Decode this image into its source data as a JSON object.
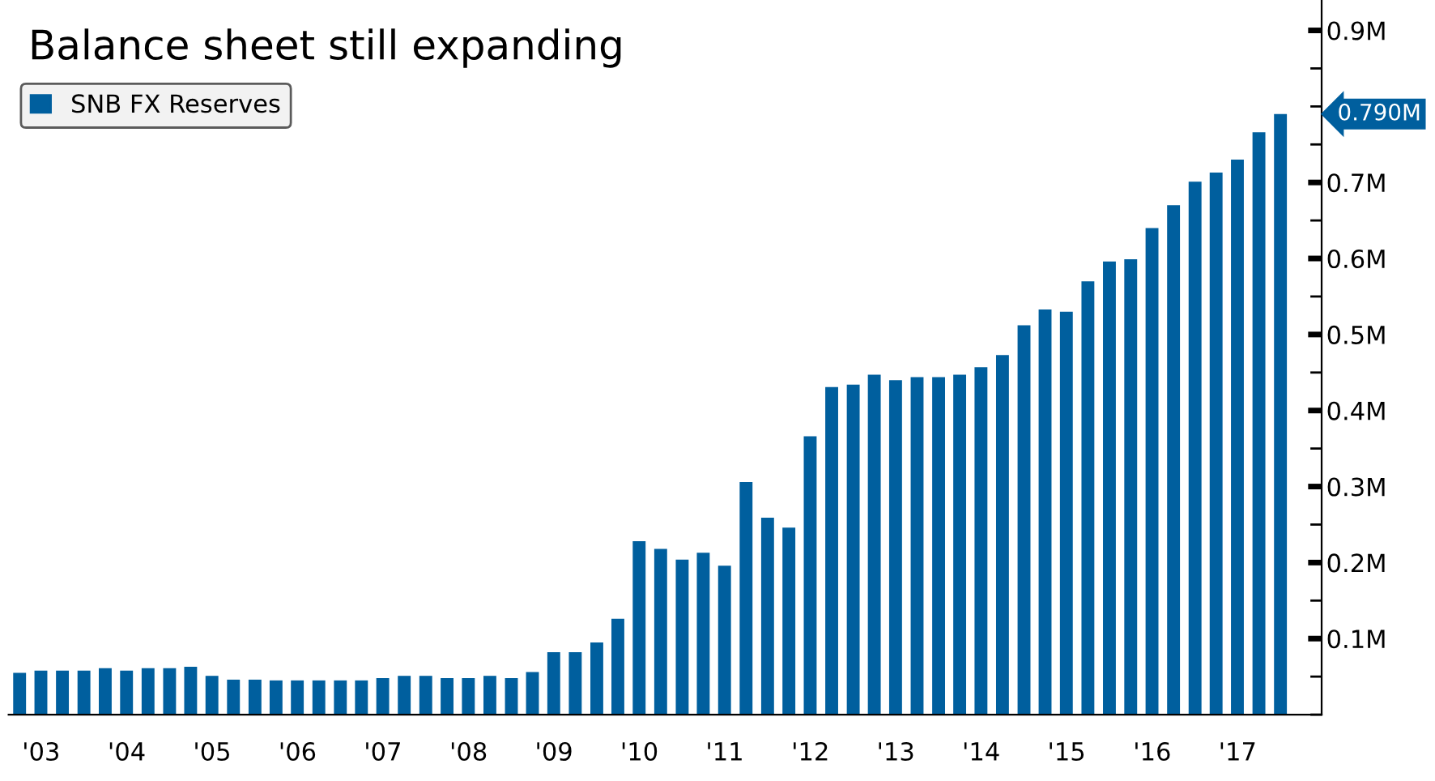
{
  "chart_data": {
    "type": "bar",
    "title": "Balance sheet still expanding",
    "x": [
      "2003-03-31",
      "2003-06-30",
      "2003-09-30",
      "2003-12-31",
      "2004-03-31",
      "2004-06-30",
      "2004-09-30",
      "2004-12-31",
      "2005-03-31",
      "2005-06-30",
      "2005-09-30",
      "2005-12-31",
      "2006-03-31",
      "2006-06-30",
      "2006-09-30",
      "2006-12-31",
      "2007-03-31",
      "2007-06-30",
      "2007-09-30",
      "2007-12-31",
      "2008-03-31",
      "2008-06-30",
      "2008-09-30",
      "2008-12-31",
      "2009-03-31",
      "2009-06-30",
      "2009-09-30",
      "2009-12-31",
      "2010-03-31",
      "2010-06-30",
      "2010-09-30",
      "2010-12-31",
      "2011-03-31",
      "2011-06-30",
      "2011-09-30",
      "2011-12-31",
      "2012-03-31",
      "2012-06-30",
      "2012-09-30",
      "2012-12-31",
      "2013-03-31",
      "2013-06-30",
      "2013-09-30",
      "2013-12-31",
      "2014-03-31",
      "2014-06-30",
      "2014-09-30",
      "2014-12-31",
      "2015-03-31",
      "2015-06-30",
      "2015-09-30",
      "2015-12-31",
      "2016-03-31",
      "2016-06-30",
      "2016-09-30",
      "2016-12-31",
      "2017-03-31",
      "2017-06-30",
      "2017-09-30",
      "2017-12-31"
    ],
    "series": [
      {
        "name": "SNB FX Reserves",
        "color": "#005f9e",
        "values": [
          0.055,
          0.058,
          0.058,
          0.058,
          0.061,
          0.058,
          0.061,
          0.061,
          0.063,
          0.051,
          0.046,
          0.046,
          0.045,
          0.045,
          0.045,
          0.045,
          0.045,
          0.048,
          0.051,
          0.051,
          0.048,
          0.048,
          0.051,
          0.048,
          0.056,
          0.082,
          0.082,
          0.095,
          0.126,
          0.228,
          0.218,
          0.204,
          0.213,
          0.196,
          0.306,
          0.259,
          0.246,
          0.366,
          0.431,
          0.434,
          0.447,
          0.44,
          0.444,
          0.444,
          0.447,
          0.457,
          0.473,
          0.512,
          0.533,
          0.53,
          0.57,
          0.596,
          0.599,
          0.64,
          0.67,
          0.701,
          0.713,
          0.73,
          0.766,
          0.79
        ]
      }
    ],
    "annotations": [
      {
        "text": "0.790M",
        "x": "2017-12-31",
        "y": 0.79
      }
    ],
    "xlim": [
      "2003-02-12",
      "2018-06-25"
    ],
    "xticks": [
      {
        "value": "2003-07-01",
        "label": "'03"
      },
      {
        "value": "2004-07-01",
        "label": "'04"
      },
      {
        "value": "2005-07-01",
        "label": "'05"
      },
      {
        "value": "2006-07-01",
        "label": "'06"
      },
      {
        "value": "2007-07-01",
        "label": "'07"
      },
      {
        "value": "2008-07-01",
        "label": "'08"
      },
      {
        "value": "2009-07-01",
        "label": "'09"
      },
      {
        "value": "2010-07-01",
        "label": "'10"
      },
      {
        "value": "2011-07-01",
        "label": "'11"
      },
      {
        "value": "2012-07-01",
        "label": "'12"
      },
      {
        "value": "2013-07-01",
        "label": "'13"
      },
      {
        "value": "2014-07-01",
        "label": "'14"
      },
      {
        "value": "2015-07-01",
        "label": "'15"
      },
      {
        "value": "2016-07-01",
        "label": "'16"
      },
      {
        "value": "2017-07-01",
        "label": "'17"
      }
    ],
    "ylim": [
      0,
      0.94
    ],
    "yticks": [
      {
        "value": 0,
        "label": null
      },
      {
        "value": 0.05,
        "label": null
      },
      {
        "value": 0.1,
        "label": "0.1M"
      },
      {
        "value": 0.15,
        "label": null
      },
      {
        "value": 0.2,
        "label": "0.2M"
      },
      {
        "value": 0.25,
        "label": null
      },
      {
        "value": 0.3,
        "label": "0.3M"
      },
      {
        "value": 0.35,
        "label": null
      },
      {
        "value": 0.4,
        "label": "0.4M"
      },
      {
        "value": 0.45,
        "label": null
      },
      {
        "value": 0.5,
        "label": "0.5M"
      },
      {
        "value": 0.55,
        "label": null
      },
      {
        "value": 0.6,
        "label": "0.6M"
      },
      {
        "value": 0.65,
        "label": null
      },
      {
        "value": 0.7,
        "label": "0.7M"
      },
      {
        "value": 0.75,
        "label": null
      },
      {
        "value": 0.8,
        "label": null
      },
      {
        "value": 0.85,
        "label": null
      },
      {
        "value": 0.9,
        "label": "0.9M"
      }
    ],
    "grid": false,
    "legend": "top left"
  }
}
